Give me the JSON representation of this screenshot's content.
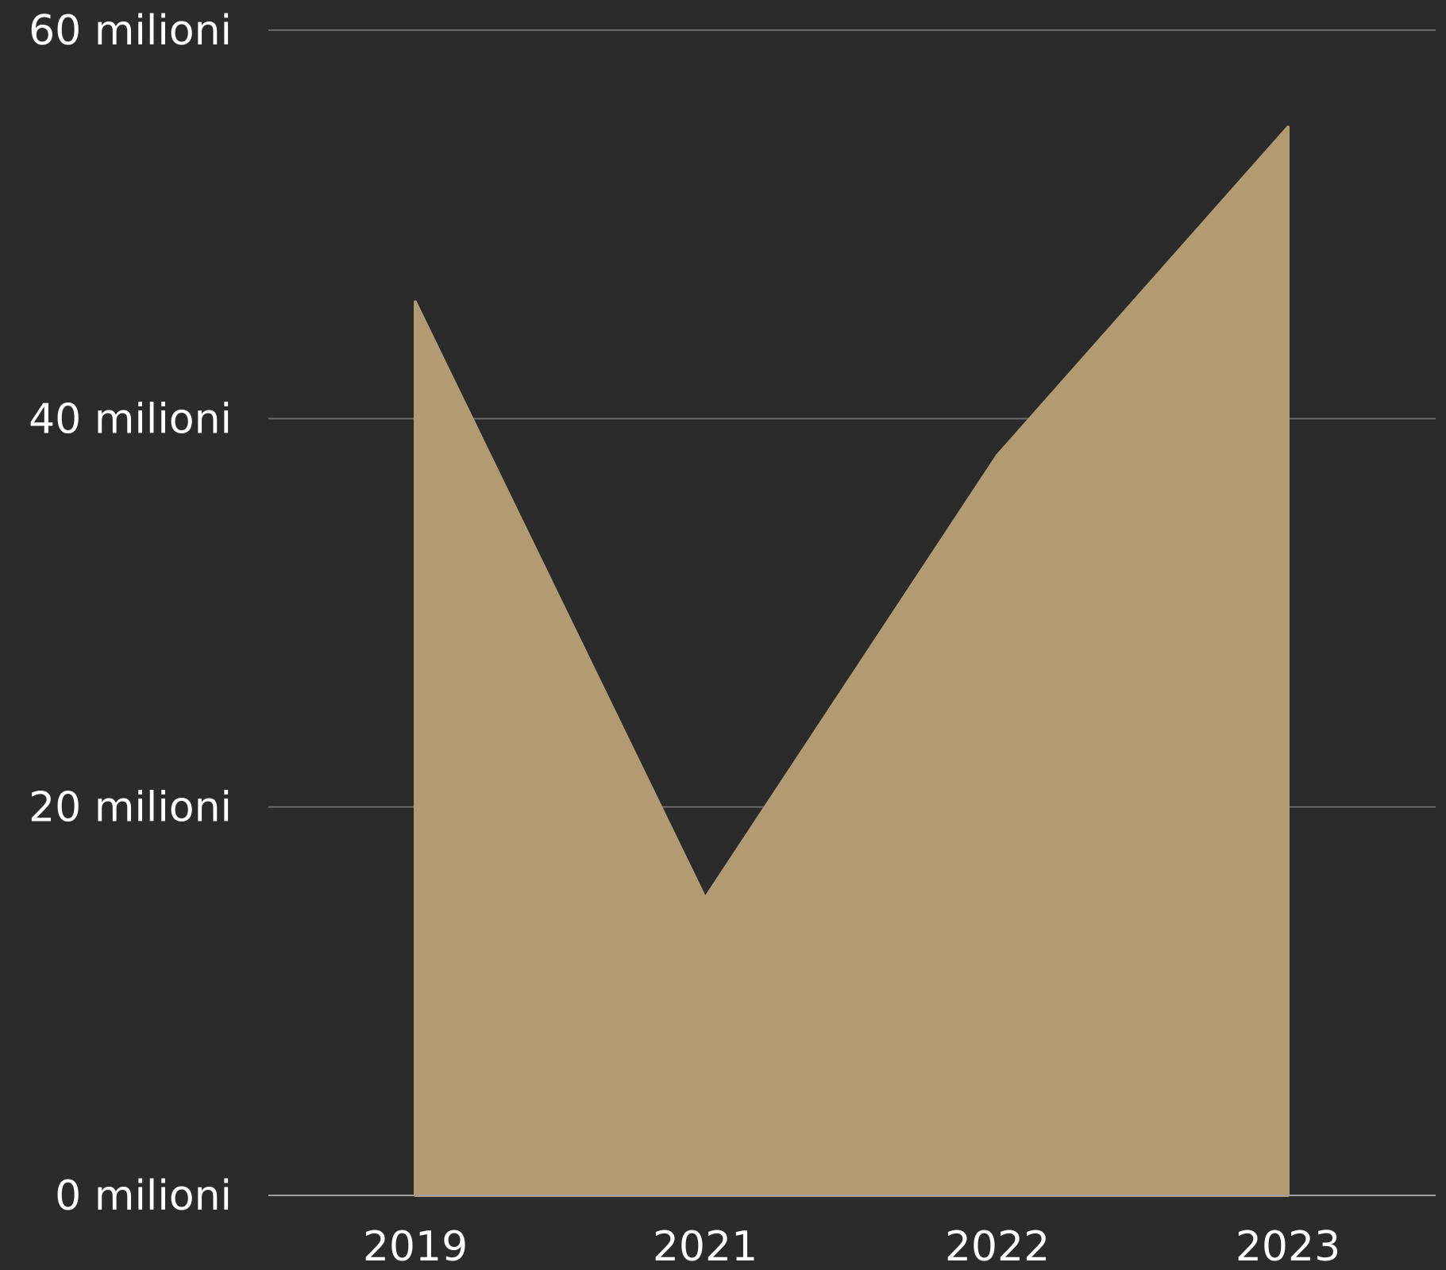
{
  "chart_data": {
    "type": "area",
    "x": [
      "2019",
      "2021",
      "2022",
      "2023"
    ],
    "values": [
      46,
      15.3,
      38.1,
      55
    ],
    "yticks": [
      0,
      20,
      40,
      60
    ],
    "ytick_labels": [
      "0 milioni",
      "20 milioni",
      "40 milioni",
      "60 milioni"
    ],
    "ylim": [
      0,
      60
    ],
    "grid": true,
    "colors": {
      "background": "#2b2b2b",
      "area": "#b29b72",
      "grid": "#6a6a6a",
      "baseline": "#a0a0a0",
      "text": "#ffffff"
    }
  }
}
